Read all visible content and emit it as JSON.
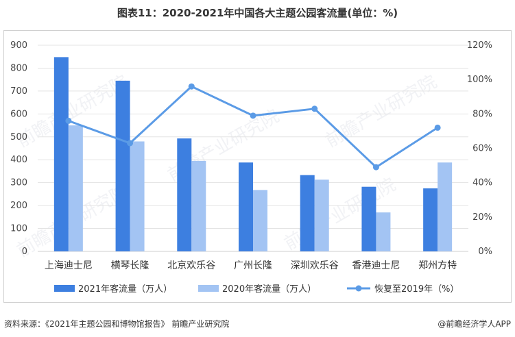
{
  "title": "图表11：2020-2021年中国各大主题公园客流量(单位：%)",
  "source_text": "资料来源：《2021年主题公园和博物馆报告》 前瞻产业研究院",
  "brand_text": "@前瞻经济学人APP",
  "watermark": "前瞻产业研究院",
  "chart_data": {
    "type": "bar",
    "categories": [
      "上海迪士尼",
      "横琴长隆",
      "北京欢乐谷",
      "广州长隆",
      "深圳欢乐谷",
      "香港迪士尼",
      "郑州方特"
    ],
    "series": [
      {
        "name": "2021年客流量（万人）",
        "type": "bar",
        "axis": "left",
        "color": "#3d7fe0",
        "values": [
          848,
          745,
          493,
          388,
          333,
          282,
          275
        ]
      },
      {
        "name": "2020年客流量（万人）",
        "type": "bar",
        "axis": "left",
        "color": "#a3c4f3",
        "values": [
          550,
          480,
          395,
          268,
          313,
          170,
          388
        ]
      },
      {
        "name": "恢复至2019年（%）",
        "type": "line",
        "axis": "right",
        "color": "#5b9be6",
        "values": [
          76,
          63,
          96,
          79,
          83,
          49,
          72
        ]
      }
    ],
    "y_left": {
      "min": 0,
      "max": 900,
      "ticks": [
        0,
        100,
        200,
        300,
        400,
        500,
        600,
        700,
        800,
        900
      ]
    },
    "y_right": {
      "min": 0,
      "max": 120,
      "ticks": [
        "0%",
        "20%",
        "40%",
        "60%",
        "80%",
        "100%",
        "120%"
      ]
    },
    "grid": true,
    "legend_position": "bottom"
  }
}
